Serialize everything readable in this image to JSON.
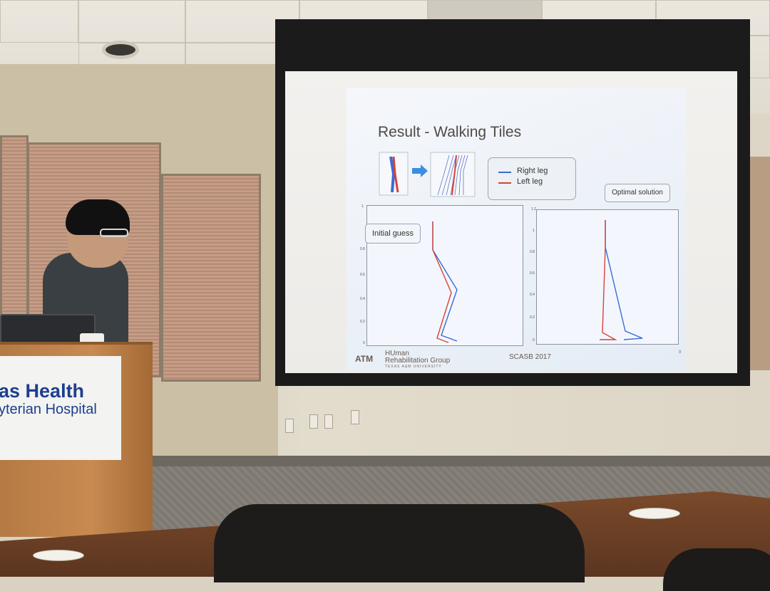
{
  "podium": {
    "sign_line1": "as Health",
    "sign_line2": "yterian Hospital"
  },
  "slide": {
    "title": "Result - Walking Tiles",
    "legend": [
      {
        "label": "Right leg",
        "color": "#3a6bd8"
      },
      {
        "label": "Left leg",
        "color": "#d8423a"
      }
    ],
    "optimal_label": "Optimal solution",
    "initial_label": "Initial guess",
    "left_plot_yticks": [
      "1",
      "0.8",
      "0.6",
      "0.4",
      "0.2",
      "0"
    ],
    "right_plot_yticks": [
      "1.2",
      "1",
      "0.8",
      "0.6",
      "0.4",
      "0.2",
      "0"
    ],
    "footer": {
      "logo": "ATM",
      "group_line1": "HUman",
      "group_line2": "Rehabilitation Group",
      "university": "TEXAS A&M UNIVERSITY",
      "conference": "SCASB 2017",
      "page": "8"
    }
  },
  "colors": {
    "right_leg": "#3a6bd8",
    "left_leg": "#d8423a",
    "screen_frame": "#1b1b1c",
    "podium_wood": "#c88a50",
    "sign_blue": "#1d3f8f"
  }
}
